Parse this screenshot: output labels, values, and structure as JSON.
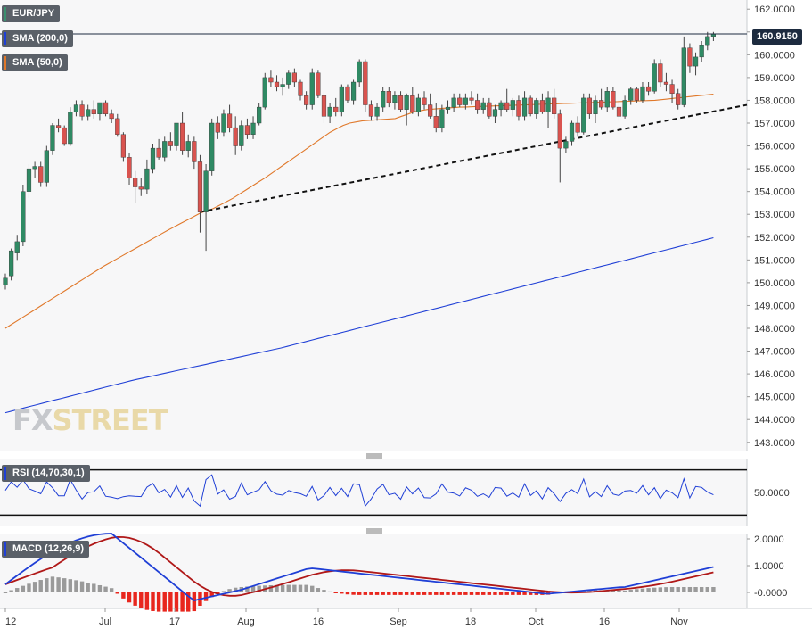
{
  "chart_data": [
    {
      "type": "candlestick",
      "panel": "price",
      "symbol_label": "EUR/JPY",
      "ylim": [
        142.6,
        162.4
      ],
      "y_ticks": [
        "162.0000",
        "161.0000",
        "160.0000",
        "159.0000",
        "158.0000",
        "157.0000",
        "156.0000",
        "155.0000",
        "154.0000",
        "153.0000",
        "152.0000",
        "151.0000",
        "150.0000",
        "149.0000",
        "148.0000",
        "147.0000",
        "146.0000",
        "145.0000",
        "144.0000",
        "143.0000"
      ],
      "x_ticks": [
        "12",
        "Jul",
        "17",
        "Aug",
        "16",
        "Sep",
        "18",
        "Oct",
        "16",
        "Nov"
      ],
      "last_price": "160.9150",
      "candles": [
        {
          "o": 149.9,
          "h": 150.4,
          "l": 149.7,
          "c": 150.2
        },
        {
          "o": 150.3,
          "h": 151.5,
          "l": 150.1,
          "c": 151.4
        },
        {
          "o": 151.3,
          "h": 152.1,
          "l": 151.0,
          "c": 151.8
        },
        {
          "o": 151.8,
          "h": 154.3,
          "l": 151.6,
          "c": 154.0
        },
        {
          "o": 154.0,
          "h": 155.2,
          "l": 153.7,
          "c": 155.0
        },
        {
          "o": 155.0,
          "h": 155.3,
          "l": 154.6,
          "c": 155.1
        },
        {
          "o": 155.1,
          "h": 155.3,
          "l": 154.2,
          "c": 154.4
        },
        {
          "o": 154.4,
          "h": 156.0,
          "l": 154.2,
          "c": 155.8
        },
        {
          "o": 155.8,
          "h": 157.0,
          "l": 155.6,
          "c": 156.9
        },
        {
          "o": 156.9,
          "h": 157.2,
          "l": 156.6,
          "c": 156.8
        },
        {
          "o": 156.8,
          "h": 156.9,
          "l": 156.0,
          "c": 156.1
        },
        {
          "o": 156.1,
          "h": 157.7,
          "l": 156.0,
          "c": 157.5
        },
        {
          "o": 157.5,
          "h": 158.0,
          "l": 157.3,
          "c": 157.8
        },
        {
          "o": 157.8,
          "h": 158.0,
          "l": 157.1,
          "c": 157.3
        },
        {
          "o": 157.3,
          "h": 157.8,
          "l": 157.1,
          "c": 157.6
        },
        {
          "o": 157.6,
          "h": 158.0,
          "l": 157.2,
          "c": 157.4
        },
        {
          "o": 157.4,
          "h": 157.9,
          "l": 157.1,
          "c": 157.9
        },
        {
          "o": 157.9,
          "h": 158.0,
          "l": 157.3,
          "c": 157.4
        },
        {
          "o": 157.4,
          "h": 157.6,
          "l": 157.0,
          "c": 157.2
        },
        {
          "o": 157.2,
          "h": 157.4,
          "l": 156.4,
          "c": 156.5
        },
        {
          "o": 156.5,
          "h": 156.6,
          "l": 155.3,
          "c": 155.5
        },
        {
          "o": 155.5,
          "h": 155.7,
          "l": 154.3,
          "c": 154.6
        },
        {
          "o": 154.6,
          "h": 154.9,
          "l": 153.5,
          "c": 154.2
        },
        {
          "o": 154.2,
          "h": 154.6,
          "l": 153.8,
          "c": 154.1
        },
        {
          "o": 154.1,
          "h": 155.4,
          "l": 153.9,
          "c": 155.0
        },
        {
          "o": 155.0,
          "h": 156.1,
          "l": 154.8,
          "c": 155.9
        },
        {
          "o": 155.9,
          "h": 156.3,
          "l": 155.4,
          "c": 155.5
        },
        {
          "o": 155.5,
          "h": 156.4,
          "l": 155.3,
          "c": 156.2
        },
        {
          "o": 156.2,
          "h": 156.6,
          "l": 155.8,
          "c": 156.0
        },
        {
          "o": 156.0,
          "h": 157.0,
          "l": 155.8,
          "c": 157.0
        },
        {
          "o": 157.0,
          "h": 157.5,
          "l": 155.6,
          "c": 155.8
        },
        {
          "o": 155.8,
          "h": 156.5,
          "l": 155.5,
          "c": 156.2
        },
        {
          "o": 156.2,
          "h": 156.4,
          "l": 155.0,
          "c": 155.3
        },
        {
          "o": 155.3,
          "h": 155.6,
          "l": 152.2,
          "c": 153.1
        },
        {
          "o": 153.1,
          "h": 155.2,
          "l": 151.4,
          "c": 154.9
        },
        {
          "o": 154.9,
          "h": 157.2,
          "l": 154.7,
          "c": 157.0
        },
        {
          "o": 157.0,
          "h": 157.3,
          "l": 156.3,
          "c": 156.6
        },
        {
          "o": 156.6,
          "h": 157.6,
          "l": 156.4,
          "c": 157.4
        },
        {
          "o": 157.4,
          "h": 157.8,
          "l": 156.6,
          "c": 156.8
        },
        {
          "o": 156.8,
          "h": 157.3,
          "l": 155.6,
          "c": 156.0
        },
        {
          "o": 156.0,
          "h": 157.1,
          "l": 155.8,
          "c": 156.9
        },
        {
          "o": 156.9,
          "h": 157.2,
          "l": 156.3,
          "c": 156.5
        },
        {
          "o": 156.5,
          "h": 157.3,
          "l": 156.3,
          "c": 157.0
        },
        {
          "o": 157.0,
          "h": 157.9,
          "l": 156.9,
          "c": 157.7
        },
        {
          "o": 157.7,
          "h": 159.2,
          "l": 157.6,
          "c": 159.0
        },
        {
          "o": 159.0,
          "h": 159.3,
          "l": 158.6,
          "c": 158.8
        },
        {
          "o": 158.8,
          "h": 159.1,
          "l": 158.4,
          "c": 158.6
        },
        {
          "o": 158.6,
          "h": 159.0,
          "l": 158.2,
          "c": 158.7
        },
        {
          "o": 158.7,
          "h": 159.3,
          "l": 158.5,
          "c": 159.2
        },
        {
          "o": 159.2,
          "h": 159.4,
          "l": 158.6,
          "c": 158.8
        },
        {
          "o": 158.8,
          "h": 158.9,
          "l": 158.0,
          "c": 158.2
        },
        {
          "o": 158.2,
          "h": 158.4,
          "l": 157.6,
          "c": 157.8
        },
        {
          "o": 157.8,
          "h": 159.4,
          "l": 157.6,
          "c": 159.2
        },
        {
          "o": 159.2,
          "h": 159.3,
          "l": 158.1,
          "c": 158.2
        },
        {
          "o": 158.2,
          "h": 158.4,
          "l": 157.0,
          "c": 157.3
        },
        {
          "o": 157.3,
          "h": 157.9,
          "l": 157.0,
          "c": 157.7
        },
        {
          "o": 157.7,
          "h": 158.1,
          "l": 157.3,
          "c": 157.5
        },
        {
          "o": 157.5,
          "h": 158.7,
          "l": 157.3,
          "c": 158.6
        },
        {
          "o": 158.6,
          "h": 158.7,
          "l": 157.9,
          "c": 158.0
        },
        {
          "o": 158.0,
          "h": 158.9,
          "l": 157.8,
          "c": 158.8
        },
        {
          "o": 158.8,
          "h": 159.8,
          "l": 158.6,
          "c": 159.7
        },
        {
          "o": 159.7,
          "h": 159.8,
          "l": 157.5,
          "c": 157.8
        },
        {
          "o": 157.8,
          "h": 158.0,
          "l": 157.1,
          "c": 157.3
        },
        {
          "o": 157.3,
          "h": 157.9,
          "l": 157.1,
          "c": 157.7
        },
        {
          "o": 157.7,
          "h": 158.6,
          "l": 157.5,
          "c": 158.4
        },
        {
          "o": 158.4,
          "h": 158.6,
          "l": 157.7,
          "c": 157.9
        },
        {
          "o": 157.9,
          "h": 158.4,
          "l": 157.6,
          "c": 158.2
        },
        {
          "o": 158.2,
          "h": 158.4,
          "l": 157.5,
          "c": 157.6
        },
        {
          "o": 157.6,
          "h": 158.3,
          "l": 156.9,
          "c": 158.2
        },
        {
          "o": 158.2,
          "h": 158.6,
          "l": 157.4,
          "c": 157.5
        },
        {
          "o": 157.5,
          "h": 158.3,
          "l": 157.3,
          "c": 158.1
        },
        {
          "o": 158.1,
          "h": 158.4,
          "l": 157.6,
          "c": 157.8
        },
        {
          "o": 157.8,
          "h": 158.3,
          "l": 157.2,
          "c": 157.3
        },
        {
          "o": 157.3,
          "h": 157.9,
          "l": 156.6,
          "c": 156.8
        },
        {
          "o": 156.8,
          "h": 157.8,
          "l": 156.6,
          "c": 157.6
        },
        {
          "o": 157.6,
          "h": 158.0,
          "l": 157.4,
          "c": 157.7
        },
        {
          "o": 157.7,
          "h": 158.3,
          "l": 157.5,
          "c": 158.1
        },
        {
          "o": 158.1,
          "h": 158.3,
          "l": 157.7,
          "c": 157.8
        },
        {
          "o": 157.8,
          "h": 158.3,
          "l": 157.6,
          "c": 158.1
        },
        {
          "o": 158.1,
          "h": 158.4,
          "l": 157.8,
          "c": 158.0
        },
        {
          "o": 158.0,
          "h": 158.3,
          "l": 157.4,
          "c": 157.6
        },
        {
          "o": 157.6,
          "h": 158.1,
          "l": 157.4,
          "c": 157.9
        },
        {
          "o": 157.9,
          "h": 158.1,
          "l": 157.2,
          "c": 157.3
        },
        {
          "o": 157.3,
          "h": 157.8,
          "l": 157.0,
          "c": 157.6
        },
        {
          "o": 157.6,
          "h": 158.0,
          "l": 157.3,
          "c": 157.9
        },
        {
          "o": 157.9,
          "h": 158.5,
          "l": 157.5,
          "c": 157.6
        },
        {
          "o": 157.6,
          "h": 158.1,
          "l": 157.3,
          "c": 158.0
        },
        {
          "o": 158.0,
          "h": 158.2,
          "l": 157.1,
          "c": 157.3
        },
        {
          "o": 157.3,
          "h": 158.4,
          "l": 157.1,
          "c": 158.1
        },
        {
          "o": 158.1,
          "h": 158.2,
          "l": 157.3,
          "c": 157.4
        },
        {
          "o": 157.4,
          "h": 158.1,
          "l": 157.2,
          "c": 158.0
        },
        {
          "o": 158.0,
          "h": 158.3,
          "l": 157.4,
          "c": 157.5
        },
        {
          "o": 157.5,
          "h": 158.4,
          "l": 156.8,
          "c": 158.1
        },
        {
          "o": 158.1,
          "h": 158.5,
          "l": 157.2,
          "c": 157.4
        },
        {
          "o": 157.4,
          "h": 157.6,
          "l": 154.4,
          "c": 155.9
        },
        {
          "o": 155.9,
          "h": 156.4,
          "l": 155.7,
          "c": 156.2
        },
        {
          "o": 156.2,
          "h": 157.1,
          "l": 156.0,
          "c": 157.0
        },
        {
          "o": 157.0,
          "h": 157.3,
          "l": 156.4,
          "c": 156.6
        },
        {
          "o": 156.6,
          "h": 158.3,
          "l": 156.5,
          "c": 158.1
        },
        {
          "o": 158.1,
          "h": 158.3,
          "l": 157.2,
          "c": 157.4
        },
        {
          "o": 157.4,
          "h": 158.2,
          "l": 157.0,
          "c": 158.0
        },
        {
          "o": 158.0,
          "h": 158.5,
          "l": 157.6,
          "c": 157.7
        },
        {
          "o": 157.7,
          "h": 158.6,
          "l": 157.5,
          "c": 158.4
        },
        {
          "o": 158.4,
          "h": 158.6,
          "l": 157.6,
          "c": 157.7
        },
        {
          "o": 157.7,
          "h": 158.0,
          "l": 157.1,
          "c": 157.3
        },
        {
          "o": 157.3,
          "h": 158.2,
          "l": 157.2,
          "c": 158.0
        },
        {
          "o": 158.0,
          "h": 158.6,
          "l": 157.8,
          "c": 158.5
        },
        {
          "o": 158.5,
          "h": 158.6,
          "l": 157.9,
          "c": 158.0
        },
        {
          "o": 158.0,
          "h": 158.8,
          "l": 157.9,
          "c": 158.6
        },
        {
          "o": 158.6,
          "h": 158.8,
          "l": 158.2,
          "c": 158.4
        },
        {
          "o": 158.4,
          "h": 159.8,
          "l": 158.3,
          "c": 159.6
        },
        {
          "o": 159.6,
          "h": 159.8,
          "l": 158.6,
          "c": 158.8
        },
        {
          "o": 158.8,
          "h": 159.2,
          "l": 158.4,
          "c": 158.7
        },
        {
          "o": 158.7,
          "h": 158.9,
          "l": 157.9,
          "c": 158.3
        },
        {
          "o": 158.3,
          "h": 158.5,
          "l": 157.6,
          "c": 157.8
        },
        {
          "o": 157.8,
          "h": 160.8,
          "l": 157.7,
          "c": 160.3
        },
        {
          "o": 160.3,
          "h": 160.5,
          "l": 159.2,
          "c": 159.5
        },
        {
          "o": 159.5,
          "h": 160.1,
          "l": 159.1,
          "c": 159.9
        },
        {
          "o": 159.9,
          "h": 160.6,
          "l": 159.7,
          "c": 160.4
        },
        {
          "o": 160.4,
          "h": 161.0,
          "l": 160.2,
          "c": 160.8
        },
        {
          "o": 160.8,
          "h": 161.0,
          "l": 160.6,
          "c": 160.9
        }
      ],
      "trendline": {
        "from_index": 33,
        "from_value": 153.1,
        "to_value": 157.8
      }
    },
    {
      "type": "line",
      "panel": "price",
      "series": [
        {
          "name": "SMA (200,0)",
          "color": "#1f3fd6",
          "values": [
            144.3,
            144.37,
            144.44,
            144.51,
            144.58,
            144.65,
            144.72,
            144.79,
            144.86,
            144.93,
            145.0,
            145.07,
            145.14,
            145.21,
            145.28,
            145.35,
            145.42,
            145.49,
            145.56,
            145.63,
            145.7,
            145.76,
            145.82,
            145.88,
            145.94,
            146.0,
            146.06,
            146.12,
            146.18,
            146.24,
            146.3,
            146.36,
            146.42,
            146.48,
            146.54,
            146.6,
            146.66,
            146.72,
            146.78,
            146.84,
            146.9,
            146.96,
            147.02,
            147.08,
            147.14,
            147.21,
            147.28,
            147.35,
            147.42,
            147.49,
            147.56,
            147.63,
            147.7,
            147.77,
            147.84,
            147.91,
            147.98,
            148.05,
            148.12,
            148.19,
            148.26,
            148.33,
            148.4,
            148.47,
            148.54,
            148.61,
            148.68,
            148.75,
            148.82,
            148.89,
            148.96,
            149.03,
            149.1,
            149.17,
            149.24,
            149.31,
            149.38,
            149.45,
            149.52,
            149.59,
            149.66,
            149.73,
            149.8,
            149.87,
            149.94,
            150.01,
            150.08,
            150.15,
            150.22,
            150.29,
            150.36,
            150.43,
            150.5,
            150.57,
            150.64,
            150.71,
            150.78,
            150.85,
            150.92,
            150.99,
            151.06,
            151.13,
            151.2,
            151.27,
            151.34,
            151.41,
            151.48,
            151.55,
            151.62,
            151.69,
            151.76,
            151.83,
            151.9,
            151.97
          ]
        },
        {
          "name": "SMA (50,0)",
          "color": "#e0782a",
          "values": [
            148.0,
            148.18,
            148.36,
            148.54,
            148.72,
            148.9,
            149.08,
            149.26,
            149.44,
            149.62,
            149.8,
            149.98,
            150.16,
            150.34,
            150.52,
            150.7,
            150.86,
            151.02,
            151.18,
            151.34,
            151.5,
            151.66,
            151.82,
            151.98,
            152.14,
            152.3,
            152.45,
            152.6,
            152.75,
            152.9,
            153.05,
            153.15,
            153.25,
            153.4,
            153.55,
            153.7,
            153.88,
            154.06,
            154.24,
            154.42,
            154.6,
            154.8,
            155.0,
            155.2,
            155.4,
            155.6,
            155.8,
            156.0,
            156.2,
            156.4,
            156.6,
            156.75,
            156.9,
            157.0,
            157.05,
            157.1,
            157.12,
            157.14,
            157.16,
            157.18,
            157.2,
            157.3,
            157.4,
            157.5,
            157.55,
            157.6,
            157.62,
            157.64,
            157.66,
            157.68,
            157.7,
            157.71,
            157.72,
            157.73,
            157.74,
            157.75,
            157.76,
            157.77,
            157.78,
            157.79,
            157.8,
            157.81,
            157.82,
            157.83,
            157.84,
            157.85,
            157.86,
            157.87,
            157.88,
            157.89,
            157.9,
            157.91,
            157.92,
            157.93,
            157.94,
            157.95,
            157.96,
            157.97,
            157.98,
            157.99,
            158.0,
            158.03,
            158.06,
            158.09,
            158.12,
            158.15,
            158.18,
            158.21,
            158.24,
            158.27
          ]
        }
      ]
    },
    {
      "type": "line",
      "panel": "RSI",
      "label": "RSI (14,70,30,1)",
      "y_ticks": [
        "50.0000"
      ],
      "levels": [
        70,
        30
      ],
      "ylim": [
        20,
        80
      ]
    },
    {
      "type": "bar+line",
      "panel": "MACD",
      "label": "MACD (12,26,9)",
      "y_ticks": [
        "2.0000",
        "1.0000",
        "-0.0000"
      ],
      "ylim": [
        -0.6,
        2.2
      ]
    }
  ]
}
